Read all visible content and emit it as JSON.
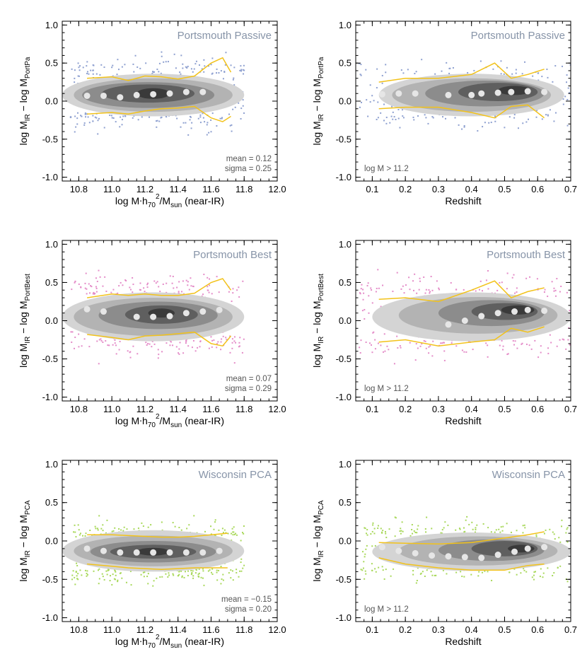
{
  "colors": {
    "passive": "#8ea0d0",
    "best": "#e48cc8",
    "pca": "#a8d85a",
    "envelope": "#f2c21a",
    "median_marker": "#e6e6e6",
    "panel_label": "#8794a8",
    "contour_levels": [
      "#d4d4d4",
      "#b3b3b3",
      "#8c8c8c",
      "#5f5f5f",
      "#3a3a3a"
    ]
  },
  "chart_data": [
    {
      "type": "scatter",
      "title": "Portsmouth Passive",
      "color_key": "passive",
      "seed": 11,
      "xlabel_parts": [
        "log M",
        ".",
        "h",
        "70",
        "2",
        "/M",
        "sun",
        " (near-IR)"
      ],
      "ylabel_parts": [
        "log M",
        "IR",
        " − log M",
        "PortPa"
      ],
      "xlim": [
        10.7,
        12.0
      ],
      "ylim": [
        -1.05,
        1.05
      ],
      "xticks": [
        "10.8",
        "11.0",
        "11.2",
        "11.4",
        "11.6",
        "11.8",
        "12.0"
      ],
      "yticks": [
        "-1.0",
        "-0.5",
        "0.0",
        "0.5",
        "1.0"
      ],
      "annotation": [
        "mean = 0.12",
        "sigma = 0.25"
      ],
      "points": {
        "x": [
          10.75,
          11.8
        ],
        "center": 0.1,
        "spread": 0.25,
        "n": 900,
        "cutoff": 0.3
      },
      "median": {
        "x": [
          10.85,
          10.95,
          11.05,
          11.15,
          11.25,
          11.35,
          11.45,
          11.55
        ],
        "y": [
          0.07,
          0.07,
          0.05,
          0.08,
          0.09,
          0.1,
          0.12,
          0.12
        ]
      },
      "upper": {
        "x": [
          10.85,
          11.0,
          11.1,
          11.2,
          11.3,
          11.4,
          11.5,
          11.6,
          11.67,
          11.72
        ],
        "y": [
          0.3,
          0.32,
          0.27,
          0.33,
          0.32,
          0.29,
          0.33,
          0.5,
          0.57,
          0.38
        ]
      },
      "lower": {
        "x": [
          10.85,
          11.0,
          11.1,
          11.2,
          11.3,
          11.4,
          11.5,
          11.6,
          11.67,
          11.72
        ],
        "y": [
          -0.17,
          -0.15,
          -0.17,
          -0.13,
          -0.1,
          -0.09,
          -0.07,
          -0.22,
          -0.27,
          -0.2
        ]
      },
      "contours": [
        {
          "cx": 11.25,
          "cy": 0.08,
          "rx": 0.55,
          "ry": 0.28
        },
        {
          "cx": 11.25,
          "cy": 0.08,
          "rx": 0.48,
          "ry": 0.22
        },
        {
          "cx": 11.22,
          "cy": 0.08,
          "rx": 0.4,
          "ry": 0.17
        },
        {
          "cx": 11.22,
          "cy": 0.1,
          "rx": 0.28,
          "ry": 0.12
        },
        {
          "cx": 11.25,
          "cy": 0.1,
          "rx": 0.1,
          "ry": 0.07
        }
      ]
    },
    {
      "type": "scatter",
      "title": "Portsmouth Passive",
      "color_key": "passive",
      "seed": 23,
      "xlabel_parts": [
        "Redshift"
      ],
      "ylabel_parts": [
        "log M",
        "IR",
        " − log M",
        "PortPa"
      ],
      "xlim": [
        0.05,
        0.7
      ],
      "ylim": [
        -1.05,
        1.05
      ],
      "xticks": [
        "0.1",
        "0.2",
        "0.3",
        "0.4",
        "0.5",
        "0.6",
        "0.7"
      ],
      "yticks": [
        "-1.0",
        "-0.5",
        "0.0",
        "0.5",
        "1.0"
      ],
      "annotation": [
        "log M > 11.2"
      ],
      "points": {
        "x": [
          0.06,
          0.7
        ],
        "center": 0.08,
        "spread": 0.22,
        "n": 800,
        "cutoff": 0.3
      },
      "median": {
        "x": [
          0.13,
          0.18,
          0.23,
          0.33,
          0.4,
          0.43,
          0.48,
          0.52,
          0.57,
          0.62
        ],
        "y": [
          0.09,
          0.1,
          0.1,
          0.08,
          0.08,
          0.1,
          0.11,
          0.12,
          0.13,
          0.12
        ]
      },
      "upper": {
        "x": [
          0.12,
          0.2,
          0.3,
          0.4,
          0.47,
          0.52,
          0.57,
          0.62
        ],
        "y": [
          0.25,
          0.3,
          0.3,
          0.35,
          0.5,
          0.3,
          0.35,
          0.42
        ]
      },
      "lower": {
        "x": [
          0.12,
          0.2,
          0.3,
          0.4,
          0.47,
          0.52,
          0.57,
          0.62
        ],
        "y": [
          -0.1,
          -0.08,
          -0.08,
          -0.15,
          -0.22,
          -0.07,
          -0.05,
          -0.22
        ]
      },
      "contours": [
        {
          "cx": 0.4,
          "cy": 0.08,
          "rx": 0.28,
          "ry": 0.28
        },
        {
          "cx": 0.4,
          "cy": 0.08,
          "rx": 0.24,
          "ry": 0.22
        },
        {
          "cx": 0.44,
          "cy": 0.1,
          "rx": 0.18,
          "ry": 0.17
        },
        {
          "cx": 0.48,
          "cy": 0.12,
          "rx": 0.12,
          "ry": 0.12
        },
        {
          "cx": 0.53,
          "cy": 0.14,
          "rx": 0.05,
          "ry": 0.06
        }
      ]
    },
    {
      "type": "scatter",
      "title": "Portsmouth Best",
      "color_key": "best",
      "seed": 37,
      "xlabel_parts": [
        "log M",
        ".",
        "h",
        "70",
        "2",
        "/M",
        "sun",
        " (near-IR)"
      ],
      "ylabel_parts": [
        "log M",
        "IR",
        " − log M",
        "PortBest"
      ],
      "xlim": [
        10.7,
        12.0
      ],
      "ylim": [
        -1.05,
        1.05
      ],
      "xticks": [
        "10.8",
        "11.0",
        "11.2",
        "11.4",
        "11.6",
        "11.8",
        "12.0"
      ],
      "yticks": [
        "-1.0",
        "-0.5",
        "0.0",
        "0.5",
        "1.0"
      ],
      "annotation": [
        "mean = 0.07",
        "sigma = 0.29"
      ],
      "points": {
        "x": [
          10.75,
          11.8
        ],
        "center": 0.07,
        "spread": 0.28,
        "n": 950,
        "cutoff": 0.32
      },
      "median": {
        "x": [
          10.85,
          10.95,
          11.15,
          11.25,
          11.35,
          11.45,
          11.55,
          11.65
        ],
        "y": [
          0.15,
          0.12,
          0.05,
          0.05,
          0.06,
          0.1,
          0.12,
          0.14
        ]
      },
      "upper": {
        "x": [
          10.85,
          11.0,
          11.1,
          11.2,
          11.3,
          11.4,
          11.5,
          11.6,
          11.67,
          11.72
        ],
        "y": [
          0.3,
          0.35,
          0.33,
          0.35,
          0.33,
          0.33,
          0.36,
          0.5,
          0.55,
          0.4
        ]
      },
      "lower": {
        "x": [
          10.85,
          11.0,
          11.1,
          11.2,
          11.3,
          11.4,
          11.5,
          11.6,
          11.67,
          11.72
        ],
        "y": [
          -0.18,
          -0.22,
          -0.25,
          -0.2,
          -0.19,
          -0.17,
          -0.15,
          -0.3,
          -0.33,
          -0.2
        ]
      },
      "contours": [
        {
          "cx": 11.25,
          "cy": 0.05,
          "rx": 0.55,
          "ry": 0.32
        },
        {
          "cx": 11.25,
          "cy": 0.05,
          "rx": 0.48,
          "ry": 0.25
        },
        {
          "cx": 11.28,
          "cy": 0.07,
          "rx": 0.36,
          "ry": 0.18
        },
        {
          "cx": 11.3,
          "cy": 0.08,
          "rx": 0.22,
          "ry": 0.12
        },
        {
          "cx": 11.3,
          "cy": 0.1,
          "rx": 0.08,
          "ry": 0.06
        }
      ]
    },
    {
      "type": "scatter",
      "title": "Portsmouth Best",
      "color_key": "best",
      "seed": 41,
      "xlabel_parts": [
        "Redshift"
      ],
      "ylabel_parts": [
        "log M",
        "IR",
        " − log M",
        "PortBest"
      ],
      "xlim": [
        0.05,
        0.7
      ],
      "ylim": [
        -1.05,
        1.05
      ],
      "xticks": [
        "0.1",
        "0.2",
        "0.3",
        "0.4",
        "0.5",
        "0.6",
        "0.7"
      ],
      "yticks": [
        "-1.0",
        "-0.5",
        "0.0",
        "0.5",
        "1.0"
      ],
      "annotation": [
        "log M > 11.2"
      ],
      "points": {
        "x": [
          0.06,
          0.7
        ],
        "center": 0.05,
        "spread": 0.28,
        "n": 850,
        "cutoff": 0.35
      },
      "median": {
        "x": [
          0.33,
          0.38,
          0.43,
          0.48,
          0.53,
          0.57,
          0.62
        ],
        "y": [
          -0.05,
          0.0,
          0.06,
          0.1,
          0.12,
          0.14,
          0.13
        ]
      },
      "upper": {
        "x": [
          0.12,
          0.2,
          0.3,
          0.4,
          0.47,
          0.52,
          0.57,
          0.62
        ],
        "y": [
          0.28,
          0.3,
          0.25,
          0.4,
          0.52,
          0.3,
          0.38,
          0.43
        ]
      },
      "lower": {
        "x": [
          0.12,
          0.2,
          0.3,
          0.4,
          0.47,
          0.52,
          0.57,
          0.62
        ],
        "y": [
          -0.28,
          -0.25,
          -0.33,
          -0.28,
          -0.25,
          -0.1,
          -0.15,
          -0.08
        ]
      },
      "contours": [
        {
          "cx": 0.4,
          "cy": 0.05,
          "rx": 0.3,
          "ry": 0.32
        },
        {
          "cx": 0.42,
          "cy": 0.07,
          "rx": 0.24,
          "ry": 0.24
        },
        {
          "cx": 0.46,
          "cy": 0.1,
          "rx": 0.16,
          "ry": 0.17
        },
        {
          "cx": 0.5,
          "cy": 0.12,
          "rx": 0.1,
          "ry": 0.11
        },
        {
          "cx": 0.54,
          "cy": 0.14,
          "rx": 0.05,
          "ry": 0.06
        }
      ]
    },
    {
      "type": "scatter",
      "title": "Wisconsin PCA",
      "color_key": "pca",
      "seed": 53,
      "xlabel_parts": [
        "log M",
        ".",
        "h",
        "70",
        "2",
        "/M",
        "sun",
        " (near-IR)"
      ],
      "ylabel_parts": [
        "log M",
        "IR",
        " − log M",
        "PCA"
      ],
      "xlim": [
        10.7,
        12.0
      ],
      "ylim": [
        -1.05,
        1.05
      ],
      "xticks": [
        "10.8",
        "11.0",
        "11.2",
        "11.4",
        "11.6",
        "11.8",
        "12.0"
      ],
      "yticks": [
        "-1.0",
        "-0.5",
        "0.0",
        "0.5",
        "1.0"
      ],
      "annotation": [
        "mean = −0.15",
        "sigma = 0.20"
      ],
      "points": {
        "x": [
          10.75,
          11.8
        ],
        "center": -0.15,
        "spread": 0.22,
        "n": 1000,
        "cutoff": 0.25
      },
      "median": {
        "x": [
          10.85,
          10.95,
          11.05,
          11.15,
          11.25,
          11.35,
          11.45,
          11.55,
          11.65
        ],
        "y": [
          -0.1,
          -0.13,
          -0.15,
          -0.15,
          -0.15,
          -0.15,
          -0.15,
          -0.15,
          -0.13
        ]
      },
      "upper": {
        "x": [
          10.85,
          11.0,
          11.1,
          11.2,
          11.3,
          11.4,
          11.5,
          11.6,
          11.7
        ],
        "y": [
          0.08,
          0.08,
          0.07,
          0.06,
          0.05,
          0.05,
          0.06,
          0.08,
          0.1
        ]
      },
      "lower": {
        "x": [
          10.85,
          11.0,
          11.1,
          11.2,
          11.3,
          11.4,
          11.5,
          11.6,
          11.7
        ],
        "y": [
          -0.3,
          -0.33,
          -0.35,
          -0.36,
          -0.37,
          -0.36,
          -0.35,
          -0.35,
          -0.35
        ]
      },
      "contours": [
        {
          "cx": 11.25,
          "cy": -0.13,
          "rx": 0.55,
          "ry": 0.27
        },
        {
          "cx": 11.25,
          "cy": -0.13,
          "rx": 0.48,
          "ry": 0.2
        },
        {
          "cx": 11.25,
          "cy": -0.14,
          "rx": 0.38,
          "ry": 0.14
        },
        {
          "cx": 11.25,
          "cy": -0.14,
          "rx": 0.26,
          "ry": 0.09
        },
        {
          "cx": 11.25,
          "cy": -0.14,
          "rx": 0.1,
          "ry": 0.05
        }
      ]
    },
    {
      "type": "scatter",
      "title": "Wisconsin PCA",
      "color_key": "pca",
      "seed": 67,
      "xlabel_parts": [
        "Redshift"
      ],
      "ylabel_parts": [
        "log M",
        "IR",
        " − log M",
        "PCA"
      ],
      "xlim": [
        0.05,
        0.7
      ],
      "ylim": [
        -1.05,
        1.05
      ],
      "xticks": [
        "0.1",
        "0.2",
        "0.3",
        "0.4",
        "0.5",
        "0.6",
        "0.7"
      ],
      "yticks": [
        "-1.0",
        "-0.5",
        "0.0",
        "0.5",
        "1.0"
      ],
      "annotation": [
        "log M > 11.2"
      ],
      "points": {
        "x": [
          0.06,
          0.7
        ],
        "center": -0.12,
        "spread": 0.2,
        "n": 800,
        "cutoff": 0.25
      },
      "median": {
        "x": [
          0.13,
          0.18,
          0.23,
          0.28,
          0.33,
          0.38,
          0.43,
          0.48,
          0.53,
          0.57,
          0.62
        ],
        "y": [
          -0.08,
          -0.13,
          -0.16,
          -0.19,
          -0.2,
          -0.21,
          -0.22,
          -0.18,
          -0.14,
          -0.1,
          -0.08
        ]
      },
      "upper": {
        "x": [
          0.12,
          0.2,
          0.3,
          0.4,
          0.5,
          0.57,
          0.62
        ],
        "y": [
          -0.02,
          -0.03,
          -0.04,
          -0.02,
          0.04,
          0.08,
          0.12
        ]
      },
      "lower": {
        "x": [
          0.12,
          0.2,
          0.3,
          0.4,
          0.5,
          0.57,
          0.62
        ],
        "y": [
          -0.22,
          -0.3,
          -0.35,
          -0.38,
          -0.38,
          -0.32,
          -0.3
        ]
      },
      "contours": [
        {
          "cx": 0.4,
          "cy": -0.14,
          "rx": 0.3,
          "ry": 0.25
        },
        {
          "cx": 0.42,
          "cy": -0.13,
          "rx": 0.24,
          "ry": 0.19
        },
        {
          "cx": 0.46,
          "cy": -0.12,
          "rx": 0.16,
          "ry": 0.14
        },
        {
          "cx": 0.5,
          "cy": -0.1,
          "rx": 0.1,
          "ry": 0.1
        },
        {
          "cx": 0.55,
          "cy": -0.1,
          "rx": 0.04,
          "ry": 0.05
        }
      ]
    }
  ]
}
